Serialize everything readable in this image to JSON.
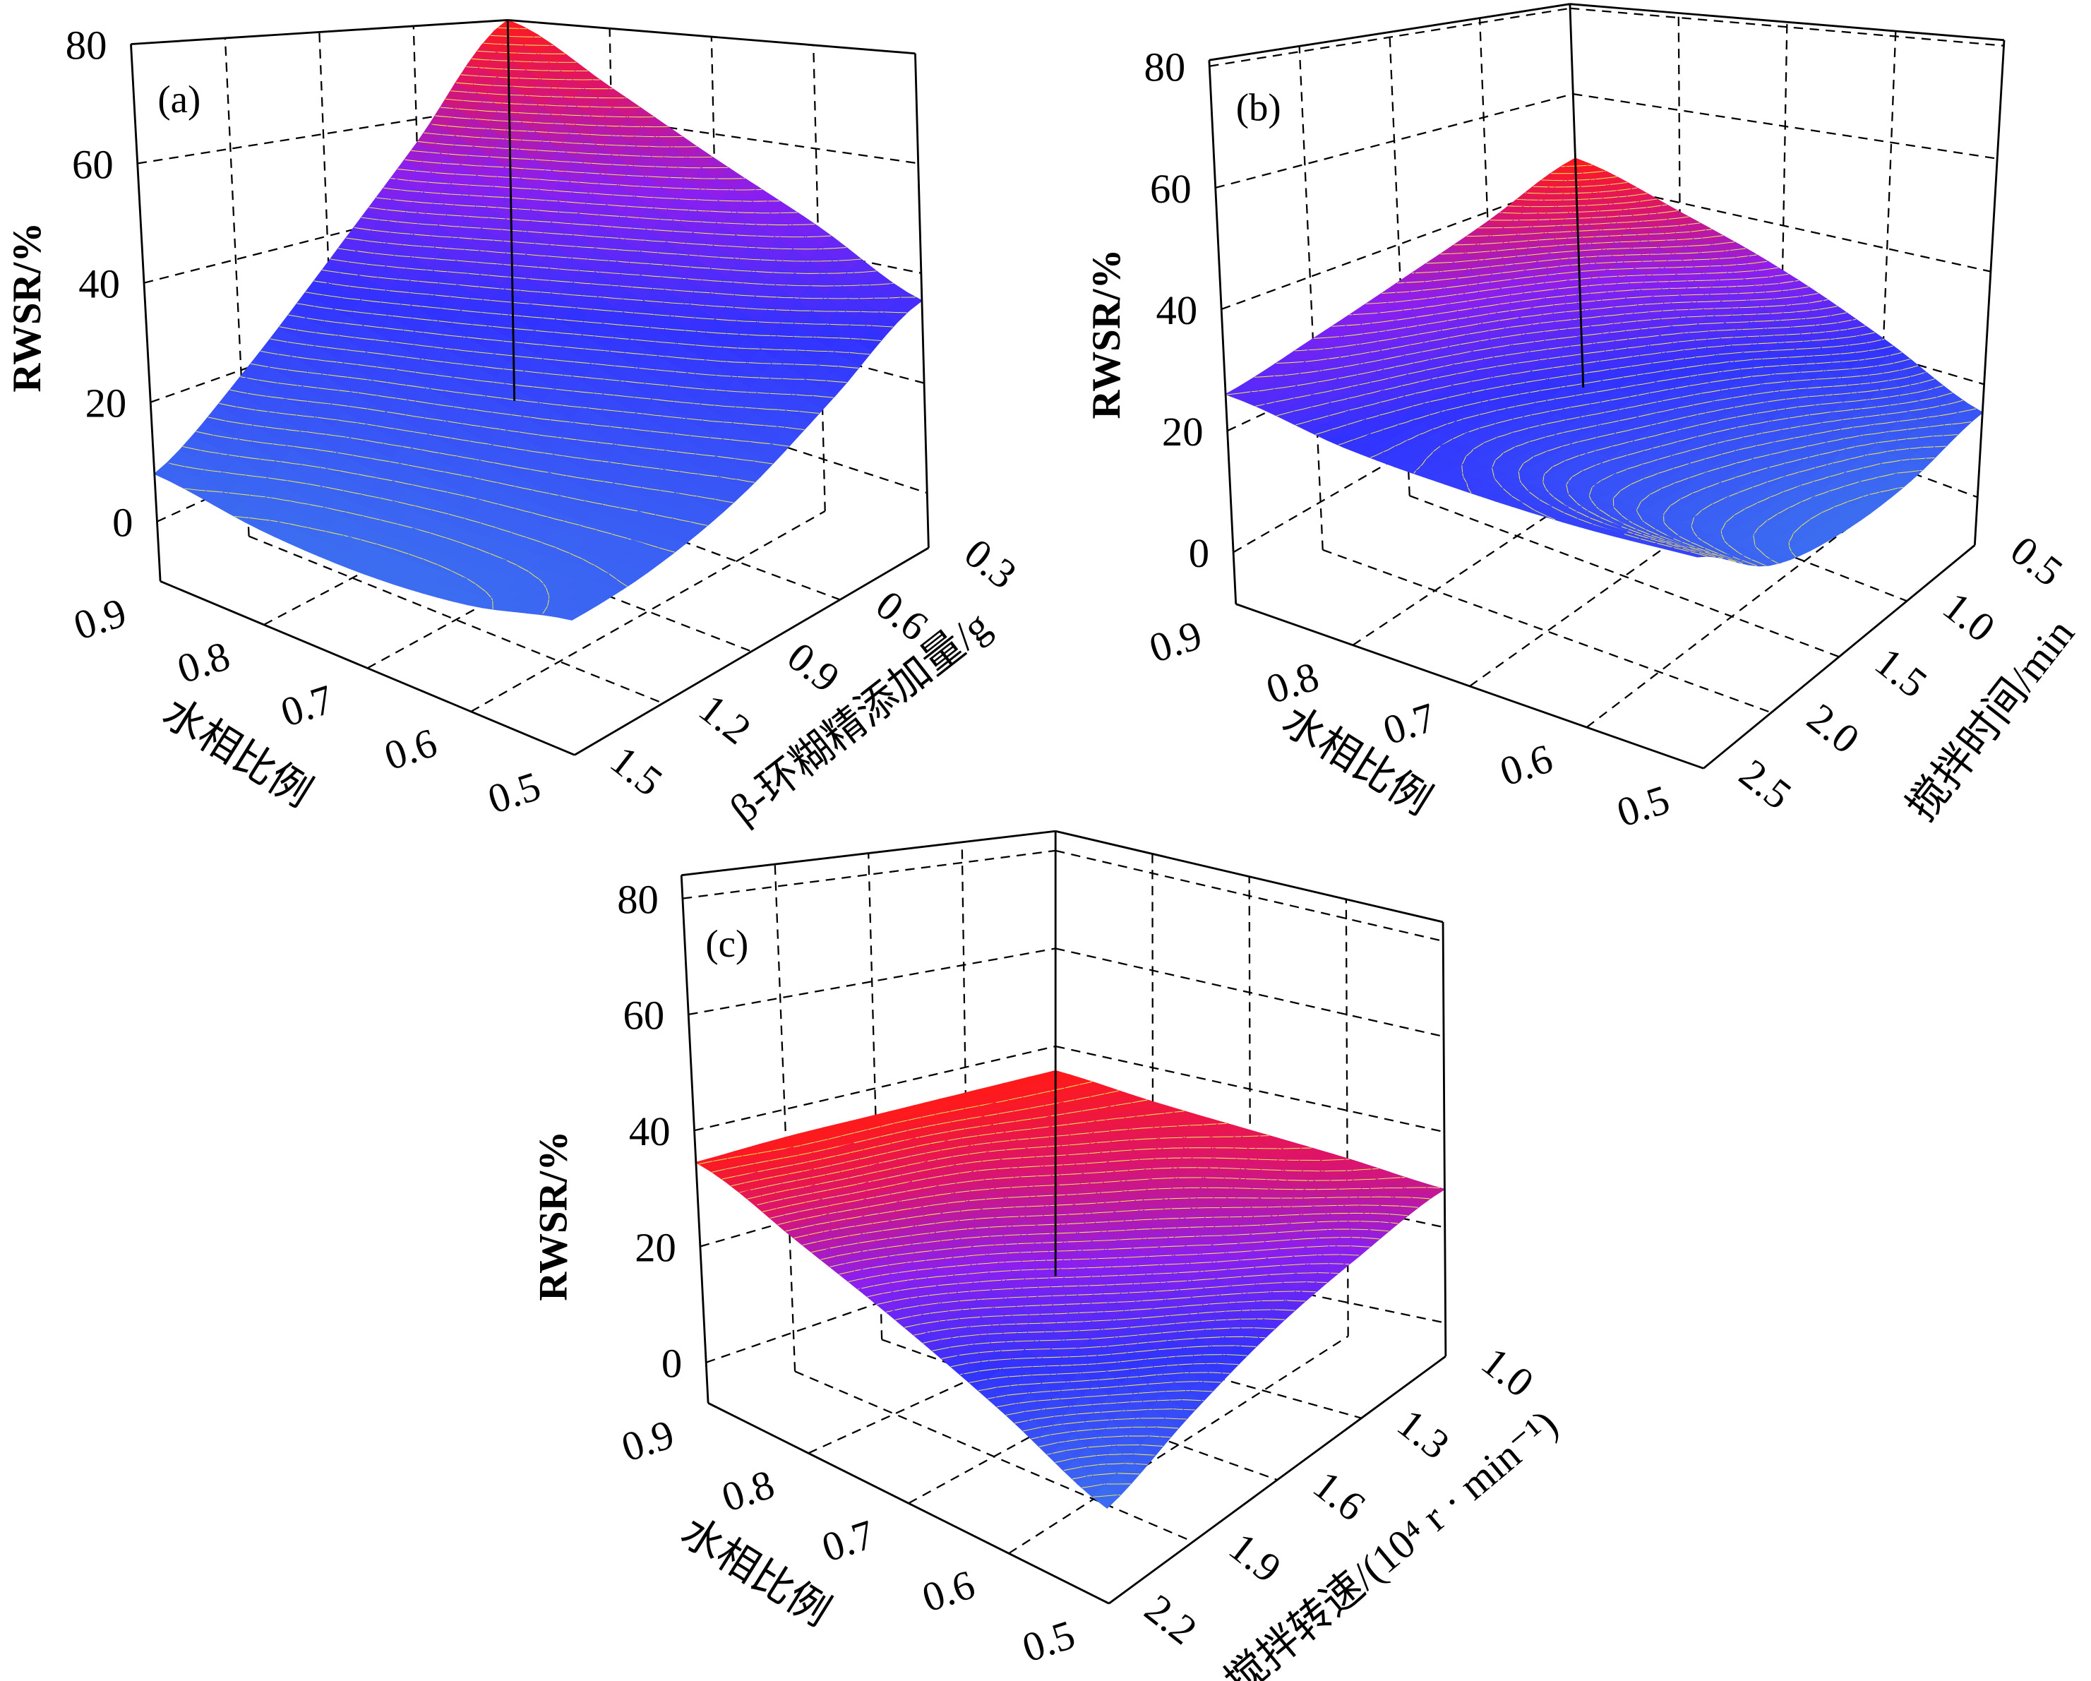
{
  "colors": {
    "low": "#3c6ef0",
    "mid_blue": "#3232ff",
    "purple": "#8c1ef0",
    "magenta": "#dc146e",
    "high": "#ff1a1a",
    "contour": "#e9e25a",
    "grid": "#000000"
  },
  "chart_data": [
    {
      "type": "surface",
      "panel_label": "(a)",
      "zlabel": "RWSR/%",
      "xlabel": "水相比例",
      "ylabel": "β-环糊精添加量/g",
      "x_ticks": [
        "0.9",
        "0.8",
        "0.7",
        "0.6",
        "0.5"
      ],
      "y_ticks": [
        "0.3",
        "0.6",
        "0.9",
        "1.2",
        "1.5"
      ],
      "z_ticks": [
        "0",
        "20",
        "40",
        "60",
        "80"
      ],
      "x": [
        0.9,
        0.8,
        0.7,
        0.6,
        0.5
      ],
      "y": [
        0.3,
        0.6,
        0.9,
        1.2,
        1.5
      ],
      "zlim": [
        -10,
        80
      ],
      "z": [
        [
          80,
          55,
          35,
          19,
          8
        ],
        [
          67,
          46,
          29,
          14,
          5
        ],
        [
          55,
          38,
          23,
          11,
          4
        ],
        [
          45,
          31,
          18,
          10,
          5
        ],
        [
          35,
          24,
          15,
          10,
          8
        ]
      ]
    },
    {
      "type": "surface",
      "panel_label": "(b)",
      "zlabel": "RWSR/%",
      "xlabel": "水相比例",
      "ylabel": "搅拌时间/min",
      "x_ticks": [
        "0.9",
        "0.8",
        "0.7",
        "0.6",
        "0.5"
      ],
      "y_ticks": [
        "0.5",
        "1.0",
        "1.5",
        "2.0",
        "2.5"
      ],
      "z_ticks": [
        "0",
        "20",
        "40",
        "60",
        "80"
      ],
      "x": [
        0.9,
        0.8,
        0.7,
        0.6,
        0.5
      ],
      "y": [
        0.5,
        1.0,
        1.5,
        2.0,
        2.5
      ],
      "zlim": [
        -8.5,
        81
      ],
      "z": [
        [
          45,
          38,
          33,
          29,
          26
        ],
        [
          38,
          31,
          26,
          23,
          22
        ],
        [
          31,
          24,
          20,
          18,
          20
        ],
        [
          23,
          17,
          14,
          14,
          19
        ],
        [
          15,
          11,
          10,
          12,
          19
        ]
      ]
    },
    {
      "type": "surface",
      "panel_label": "(c)",
      "zlabel": "RWSR/%",
      "xlabel": "水相比例",
      "ylabel": "搅拌转速/(10⁴ r · min⁻¹)",
      "x_ticks": [
        "0.9",
        "0.8",
        "0.7",
        "0.6",
        "0.5"
      ],
      "y_ticks": [
        "1.0",
        "1.3",
        "1.6",
        "1.9",
        "2.2"
      ],
      "z_ticks": [
        "0",
        "20",
        "40",
        "60",
        "80"
      ],
      "x": [
        0.9,
        0.8,
        0.7,
        0.6,
        0.5
      ],
      "y": [
        1.0,
        1.3,
        1.6,
        1.9,
        2.2
      ],
      "zlim": [
        -7,
        84
      ],
      "z": [
        [
          35,
          35,
          35,
          35,
          34.5
        ],
        [
          33,
          32,
          30,
          28.5,
          27
        ],
        [
          31.5,
          29,
          26.5,
          23,
          20
        ],
        [
          30,
          26.5,
          22.5,
          18,
          13
        ],
        [
          28,
          23,
          18,
          12,
          6
        ]
      ]
    }
  ]
}
